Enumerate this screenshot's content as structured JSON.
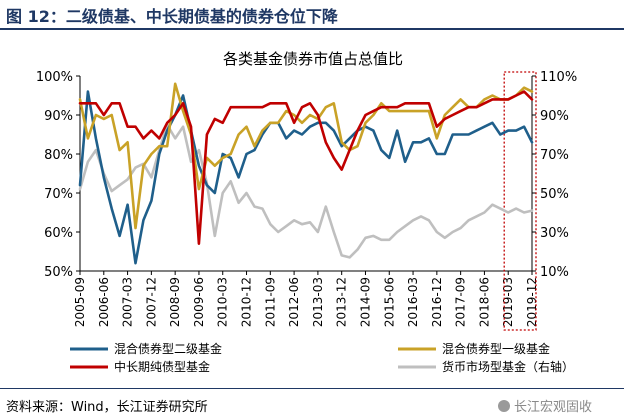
{
  "figure_title": "图 12：二级债基、中长期债基的债券仓位下降",
  "source_note": "资料来源：Wind，长江证券研究所",
  "watermark": "长江宏观固收",
  "colors": {
    "title": "#1f3864",
    "secondary_bond": "#1f5f8b",
    "primary_bond": "#c9a227",
    "mid_long_bond": "#c00000",
    "money_market": "#bfbfbf",
    "highlight_box": "#c00000"
  },
  "chart_data": {
    "type": "line",
    "title": "各类基金债券市值占总值比",
    "x_ticks": [
      "2005-09",
      "2006-06",
      "2007-03",
      "2007-12",
      "2008-09",
      "2009-06",
      "2010-03",
      "2010-12",
      "2011-09",
      "2012-06",
      "2013-03",
      "2013-12",
      "2014-09",
      "2015-06",
      "2016-03",
      "2016-12",
      "2017-09",
      "2018-06",
      "2019-03",
      "2019-12"
    ],
    "x_range": [
      "2005-09",
      "2019-12"
    ],
    "y_left": {
      "range": [
        50,
        100
      ],
      "ticks": [
        "50%",
        "60%",
        "70%",
        "80%",
        "90%",
        "100%"
      ]
    },
    "y_right": {
      "range": [
        10,
        110
      ],
      "ticks": [
        "10%",
        "30%",
        "50%",
        "70%",
        "90%",
        "110%"
      ]
    },
    "legend_position": "bottom",
    "grid": false,
    "highlight_range": [
      "2019-03",
      "2019-12"
    ],
    "series": [
      {
        "name": "混合债券型二级基金",
        "axis": "left",
        "color_key": "secondary_bond",
        "points": [
          [
            "2005-09",
            72
          ],
          [
            "2005-12",
            96
          ],
          [
            "2006-03",
            84
          ],
          [
            "2006-06",
            74
          ],
          [
            "2006-09",
            66
          ],
          [
            "2006-12",
            59
          ],
          [
            "2007-03",
            67
          ],
          [
            "2007-06",
            52
          ],
          [
            "2007-09",
            63
          ],
          [
            "2007-12",
            68
          ],
          [
            "2008-03",
            80
          ],
          [
            "2008-06",
            86
          ],
          [
            "2008-09",
            90
          ],
          [
            "2008-12",
            95
          ],
          [
            "2009-03",
            86
          ],
          [
            "2009-06",
            77
          ],
          [
            "2009-09",
            72
          ],
          [
            "2009-12",
            70
          ],
          [
            "2010-03",
            80
          ],
          [
            "2010-06",
            79
          ],
          [
            "2010-09",
            74
          ],
          [
            "2010-12",
            80
          ],
          [
            "2011-03",
            81
          ],
          [
            "2011-06",
            85
          ],
          [
            "2011-09",
            88
          ],
          [
            "2011-12",
            88
          ],
          [
            "2012-03",
            84
          ],
          [
            "2012-06",
            86
          ],
          [
            "2012-09",
            85
          ],
          [
            "2012-12",
            87
          ],
          [
            "2013-03",
            88
          ],
          [
            "2013-06",
            88
          ],
          [
            "2013-09",
            86
          ],
          [
            "2013-12",
            82
          ],
          [
            "2014-03",
            84
          ],
          [
            "2014-06",
            86
          ],
          [
            "2014-09",
            87
          ],
          [
            "2014-12",
            86
          ],
          [
            "2015-03",
            81
          ],
          [
            "2015-06",
            79
          ],
          [
            "2015-09",
            86
          ],
          [
            "2015-12",
            78
          ],
          [
            "2016-03",
            83
          ],
          [
            "2016-06",
            83
          ],
          [
            "2016-09",
            84
          ],
          [
            "2016-12",
            80
          ],
          [
            "2017-03",
            80
          ],
          [
            "2017-06",
            85
          ],
          [
            "2017-09",
            85
          ],
          [
            "2017-12",
            85
          ],
          [
            "2018-03",
            86
          ],
          [
            "2018-06",
            87
          ],
          [
            "2018-09",
            88
          ],
          [
            "2018-12",
            85
          ],
          [
            "2019-03",
            86
          ],
          [
            "2019-06",
            86
          ],
          [
            "2019-09",
            87
          ],
          [
            "2019-12",
            83
          ]
        ]
      },
      {
        "name": "混合债券型一级基金",
        "axis": "left",
        "color_key": "primary_bond",
        "points": [
          [
            "2005-09",
            94
          ],
          [
            "2005-12",
            84
          ],
          [
            "2006-03",
            90
          ],
          [
            "2006-06",
            89
          ],
          [
            "2006-09",
            90
          ],
          [
            "2006-12",
            81
          ],
          [
            "2007-03",
            83
          ],
          [
            "2007-06",
            61
          ],
          [
            "2007-09",
            77
          ],
          [
            "2007-12",
            80
          ],
          [
            "2008-03",
            82
          ],
          [
            "2008-06",
            82
          ],
          [
            "2008-09",
            98
          ],
          [
            "2008-12",
            91
          ],
          [
            "2009-03",
            85
          ],
          [
            "2009-06",
            71
          ],
          [
            "2009-09",
            79
          ],
          [
            "2009-12",
            77
          ],
          [
            "2010-03",
            79
          ],
          [
            "2010-06",
            80
          ],
          [
            "2010-09",
            85
          ],
          [
            "2010-12",
            87
          ],
          [
            "2011-03",
            82
          ],
          [
            "2011-06",
            86
          ],
          [
            "2011-09",
            88
          ],
          [
            "2011-12",
            88
          ],
          [
            "2012-03",
            91
          ],
          [
            "2012-06",
            90
          ],
          [
            "2012-09",
            88
          ],
          [
            "2012-12",
            90
          ],
          [
            "2013-03",
            89
          ],
          [
            "2013-06",
            92
          ],
          [
            "2013-09",
            93
          ],
          [
            "2013-12",
            83
          ],
          [
            "2014-03",
            81
          ],
          [
            "2014-06",
            82
          ],
          [
            "2014-09",
            88
          ],
          [
            "2014-12",
            90
          ],
          [
            "2015-03",
            93
          ],
          [
            "2015-06",
            91
          ],
          [
            "2015-09",
            91
          ],
          [
            "2015-12",
            91
          ],
          [
            "2016-03",
            91
          ],
          [
            "2016-06",
            91
          ],
          [
            "2016-09",
            91
          ],
          [
            "2016-12",
            84
          ],
          [
            "2017-03",
            90
          ],
          [
            "2017-06",
            92
          ],
          [
            "2017-09",
            94
          ],
          [
            "2017-12",
            92
          ],
          [
            "2018-03",
            92
          ],
          [
            "2018-06",
            94
          ],
          [
            "2018-09",
            95
          ],
          [
            "2018-12",
            94
          ],
          [
            "2019-03",
            94
          ],
          [
            "2019-06",
            95
          ],
          [
            "2019-09",
            97
          ],
          [
            "2019-12",
            96
          ]
        ]
      },
      {
        "name": "中长期纯债型基金",
        "axis": "left",
        "color_key": "mid_long_bond",
        "points": [
          [
            "2005-09",
            93
          ],
          [
            "2005-12",
            93
          ],
          [
            "2006-03",
            93
          ],
          [
            "2006-06",
            90
          ],
          [
            "2006-09",
            93
          ],
          [
            "2006-12",
            93
          ],
          [
            "2007-03",
            87
          ],
          [
            "2007-06",
            87
          ],
          [
            "2007-09",
            84
          ],
          [
            "2007-12",
            86
          ],
          [
            "2008-03",
            84
          ],
          [
            "2008-06",
            88
          ],
          [
            "2008-09",
            90
          ],
          [
            "2008-12",
            93
          ],
          [
            "2009-03",
            87
          ],
          [
            "2009-06",
            57
          ],
          [
            "2009-09",
            85
          ],
          [
            "2009-12",
            89
          ],
          [
            "2010-03",
            88
          ],
          [
            "2010-06",
            92
          ],
          [
            "2010-09",
            92
          ],
          [
            "2010-12",
            92
          ],
          [
            "2011-03",
            92
          ],
          [
            "2011-06",
            92
          ],
          [
            "2011-09",
            93
          ],
          [
            "2011-12",
            93
          ],
          [
            "2012-03",
            93
          ],
          [
            "2012-06",
            88
          ],
          [
            "2012-09",
            92
          ],
          [
            "2012-12",
            93
          ],
          [
            "2013-03",
            90
          ],
          [
            "2013-06",
            83
          ],
          [
            "2013-09",
            79
          ],
          [
            "2013-12",
            76
          ],
          [
            "2014-03",
            81
          ],
          [
            "2014-06",
            86
          ],
          [
            "2014-09",
            90
          ],
          [
            "2014-12",
            91
          ],
          [
            "2015-03",
            92
          ],
          [
            "2015-06",
            92
          ],
          [
            "2015-09",
            92
          ],
          [
            "2015-12",
            93
          ],
          [
            "2016-03",
            93
          ],
          [
            "2016-06",
            93
          ],
          [
            "2016-09",
            93
          ],
          [
            "2016-12",
            87
          ],
          [
            "2017-03",
            89
          ],
          [
            "2017-06",
            90
          ],
          [
            "2017-09",
            91
          ],
          [
            "2017-12",
            92
          ],
          [
            "2018-03",
            92
          ],
          [
            "2018-06",
            93
          ],
          [
            "2018-09",
            94
          ],
          [
            "2018-12",
            94
          ],
          [
            "2019-03",
            94
          ],
          [
            "2019-06",
            95
          ],
          [
            "2019-09",
            96
          ],
          [
            "2019-12",
            94
          ]
        ]
      },
      {
        "name": "货币市场型基金（右轴）",
        "axis": "right",
        "color_key": "money_market",
        "points": [
          [
            "2005-09",
            52
          ],
          [
            "2005-12",
            66
          ],
          [
            "2006-03",
            72
          ],
          [
            "2006-06",
            60
          ],
          [
            "2006-09",
            51
          ],
          [
            "2006-12",
            54
          ],
          [
            "2007-03",
            57
          ],
          [
            "2007-06",
            63
          ],
          [
            "2007-09",
            65
          ],
          [
            "2007-12",
            58
          ],
          [
            "2008-03",
            72
          ],
          [
            "2008-06",
            85
          ],
          [
            "2008-09",
            78
          ],
          [
            "2008-12",
            84
          ],
          [
            "2009-03",
            66
          ],
          [
            "2009-06",
            72
          ],
          [
            "2009-09",
            55
          ],
          [
            "2009-12",
            28
          ],
          [
            "2010-03",
            50
          ],
          [
            "2010-06",
            56
          ],
          [
            "2010-09",
            45
          ],
          [
            "2010-12",
            50
          ],
          [
            "2011-03",
            43
          ],
          [
            "2011-06",
            42
          ],
          [
            "2011-09",
            34
          ],
          [
            "2011-12",
            30
          ],
          [
            "2012-03",
            33
          ],
          [
            "2012-06",
            36
          ],
          [
            "2012-09",
            34
          ],
          [
            "2012-12",
            35
          ],
          [
            "2013-03",
            30
          ],
          [
            "2013-06",
            43
          ],
          [
            "2013-09",
            30
          ],
          [
            "2013-12",
            18
          ],
          [
            "2014-03",
            17
          ],
          [
            "2014-06",
            21
          ],
          [
            "2014-09",
            27
          ],
          [
            "2014-12",
            28
          ],
          [
            "2015-03",
            26
          ],
          [
            "2015-06",
            26
          ],
          [
            "2015-09",
            30
          ],
          [
            "2015-12",
            33
          ],
          [
            "2016-03",
            36
          ],
          [
            "2016-06",
            38
          ],
          [
            "2016-09",
            36
          ],
          [
            "2016-12",
            30
          ],
          [
            "2017-03",
            27
          ],
          [
            "2017-06",
            30
          ],
          [
            "2017-09",
            32
          ],
          [
            "2017-12",
            36
          ],
          [
            "2018-03",
            38
          ],
          [
            "2018-06",
            40
          ],
          [
            "2018-09",
            44
          ],
          [
            "2018-12",
            42
          ],
          [
            "2019-03",
            40
          ],
          [
            "2019-06",
            42
          ],
          [
            "2019-09",
            40
          ],
          [
            "2019-12",
            41
          ]
        ]
      }
    ],
    "legend": [
      {
        "label": "混合债券型二级基金",
        "color_key": "secondary_bond"
      },
      {
        "label": "混合债券型一级基金",
        "color_key": "primary_bond"
      },
      {
        "label": "中长期纯债型基金",
        "color_key": "mid_long_bond"
      },
      {
        "label": "货币市场型基金（右轴）",
        "color_key": "money_market"
      }
    ]
  }
}
